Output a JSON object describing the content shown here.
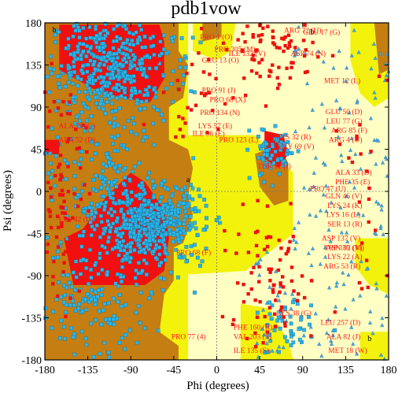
{
  "chart_data": {
    "type": "scatter",
    "title": "pdb1vow",
    "xlabel": "Phi (degrees)",
    "ylabel": "Psi (degrees)",
    "xlim": [
      -180,
      180
    ],
    "ylim": [
      -180,
      180
    ],
    "x_ticks": [
      "-180",
      "-135",
      "-90",
      "-45",
      "0",
      "45",
      "90",
      "135",
      "180"
    ],
    "y_ticks": [
      "180",
      "135",
      "90",
      "45",
      "0",
      "-45",
      "-90",
      "-135",
      "-180"
    ],
    "grid": true,
    "colors": {
      "most_favoured": "#f20f0f",
      "additional_allowed": "#c47e12",
      "generously_allowed": "#f2f20c",
      "disallowed_light": "#ffffc4",
      "background": "#ffffff",
      "glycine_point": "#4aa3df",
      "general_point": "#29b6e8",
      "outlier_point": "#ee1111",
      "label_text": "#ff1a1a"
    },
    "region_letters": [
      "b",
      "b",
      "a",
      "b"
    ],
    "outlier_labels": [
      {
        "text": "ARG 72 (U)",
        "phi": 68,
        "psi": 172
      },
      {
        "text": "GLU 17 (G)",
        "phi": 88,
        "psi": 170
      },
      {
        "text": "PRO 1 (O)",
        "phi": -20,
        "psi": 165
      },
      {
        "text": "PRO 305 (M)",
        "phi": -5,
        "psi": 152
      },
      {
        "text": "ILE 132 (V)",
        "phi": 10,
        "psi": 147
      },
      {
        "text": "ASP 74 (N)",
        "phi": 75,
        "psi": 147
      },
      {
        "text": "GLU 13 (O)",
        "phi": -18,
        "psi": 140
      },
      {
        "text": "PRO 91 (J)",
        "phi": -18,
        "psi": 108
      },
      {
        "text": "MET 12 (L)",
        "phi": 148,
        "psi": 118
      },
      {
        "text": "PRO 68 (X)",
        "phi": -10,
        "psi": 98
      },
      {
        "text": "PRO 134 (N)",
        "phi": -20,
        "psi": 84
      },
      {
        "text": "LYS 57 (E)",
        "phi": -22,
        "psi": 70
      },
      {
        "text": "ILE 96 (E)",
        "phi": -28,
        "psi": 62
      },
      {
        "text": "PRO 123 (L)",
        "phi": 0,
        "psi": 55
      },
      {
        "text": "GLU 50 (D)",
        "phi": 150,
        "psi": 85
      },
      {
        "text": "LEU 77 (G)",
        "phi": 150,
        "psi": 75
      },
      {
        "text": "ARG 85 (F)",
        "phi": 155,
        "psi": 65
      },
      {
        "text": "ARG 4 (U)",
        "phi": 150,
        "psi": 55
      },
      {
        "text": "LYS 32 (R)",
        "phi": 60,
        "psi": 58
      },
      {
        "text": "GLY 69 (V)",
        "phi": 62,
        "psi": 48
      },
      {
        "text": "ALA 29 (G)",
        "phi": -168,
        "psi": 70
      },
      {
        "text": "ALA 52 (D)",
        "phi": -168,
        "psi": 55
      },
      {
        "text": "THR 12 (I)",
        "phi": 40,
        "psi": 27
      },
      {
        "text": "ALA 33 (D)",
        "phi": 160,
        "psi": 20
      },
      {
        "text": "PHE 35 (E)",
        "phi": 158,
        "psi": 10
      },
      {
        "text": "GLN 46 (V)",
        "phi": 150,
        "psi": -5
      },
      {
        "text": "PRO 47 (U)",
        "phi": 95,
        "psi": 3
      },
      {
        "text": "LYS 24 (K)",
        "phi": 150,
        "psi": -15
      },
      {
        "text": "LYS 16 (L)",
        "phi": 148,
        "psi": -25
      },
      {
        "text": "SER 13 (R)",
        "phi": 150,
        "psi": -35
      },
      {
        "text": "LYS 42 (D)",
        "phi": -168,
        "psi": -30
      },
      {
        "text": "ASP 137 (V)",
        "phi": 148,
        "psi": -50
      },
      {
        "text": "ASN 35 (V)",
        "phi": 150,
        "psi": -60
      },
      {
        "text": "LYS 22 (A)",
        "phi": 150,
        "psi": -70
      },
      {
        "text": "ARG 53 (R)",
        "phi": 148,
        "psi": -80
      },
      {
        "text": "PRO 68 (F)",
        "phi": -45,
        "psi": -65
      },
      {
        "text": "TRP 102 (M)",
        "phi": 110,
        "psi": -60
      },
      {
        "text": "LEU 257 (D)",
        "phi": 148,
        "psi": -140
      },
      {
        "text": "ALA 82 (J)",
        "phi": 148,
        "psi": -155
      },
      {
        "text": "MET 18 (W)",
        "phi": 155,
        "psi": -170
      },
      {
        "text": "LYS 38 (G)",
        "phi": 60,
        "psi": -130
      },
      {
        "text": "PHE 160 (R)",
        "phi": 15,
        "psi": -145
      },
      {
        "text": "VAL 203 (S)",
        "phi": 15,
        "psi": -155
      },
      {
        "text": "ILE 135 (S)",
        "phi": 15,
        "psi": -170
      },
      {
        "text": "PRO 77 (4)",
        "phi": -50,
        "psi": -155
      }
    ]
  }
}
